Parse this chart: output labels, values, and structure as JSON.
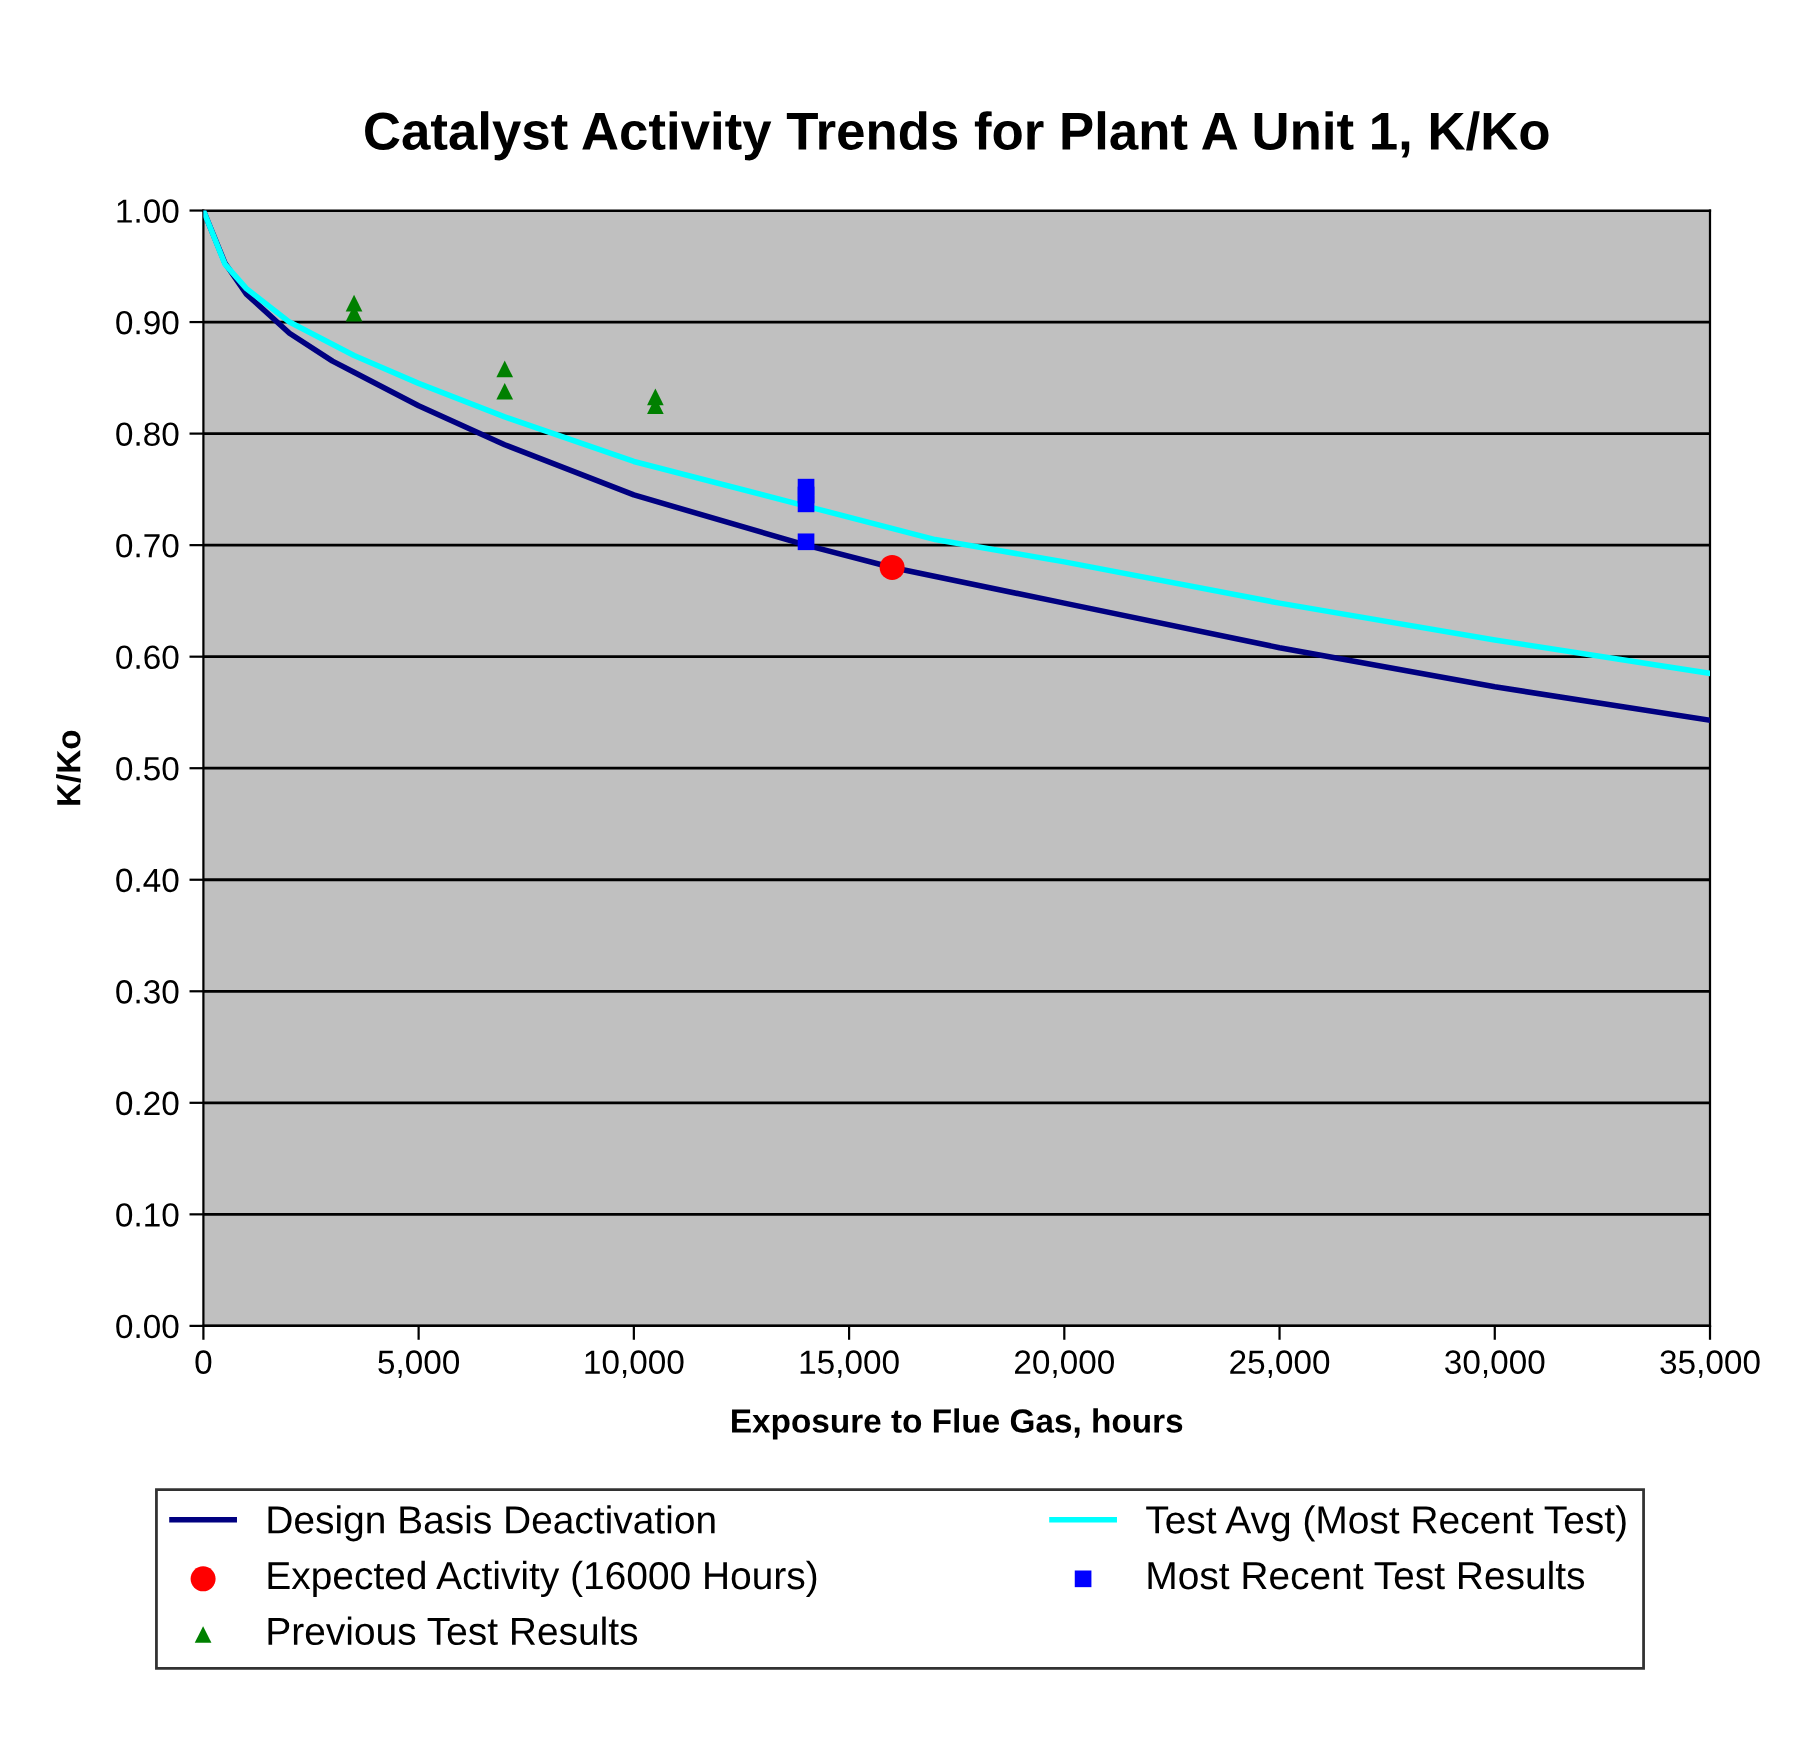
{
  "chart_data": {
    "type": "line",
    "title": "Catalyst Activity Trends for Plant A Unit 1, K/Ko",
    "xlabel": "Exposure to Flue Gas, hours",
    "ylabel": "K/Ko",
    "xlim": [
      0,
      35000
    ],
    "xticks": [
      {
        "value": 0,
        "label": "0"
      },
      {
        "value": 5000,
        "label": "5,000"
      },
      {
        "value": 10000,
        "label": "10,000"
      },
      {
        "value": 15000,
        "label": "15,000"
      },
      {
        "value": 20000,
        "label": "20,000"
      },
      {
        "value": 25000,
        "label": "25,000"
      },
      {
        "value": 30000,
        "label": "30,000"
      },
      {
        "value": 35000,
        "label": "35,000"
      }
    ],
    "ylim": [
      0,
      1
    ],
    "yticks": [
      {
        "value": 0,
        "label": "0.00"
      },
      {
        "value": 0.1,
        "label": "0.10"
      },
      {
        "value": 0.2,
        "label": "0.20"
      },
      {
        "value": 0.3,
        "label": "0.30"
      },
      {
        "value": 0.4,
        "label": "0.40"
      },
      {
        "value": 0.5,
        "label": "0.50"
      },
      {
        "value": 0.6,
        "label": "0.60"
      },
      {
        "value": 0.7,
        "label": "0.70"
      },
      {
        "value": 0.8,
        "label": "0.80"
      },
      {
        "value": 0.9,
        "label": "0.90"
      },
      {
        "value": 1,
        "label": "1.00"
      }
    ],
    "grid": "y",
    "legend": "bottom",
    "series": [
      {
        "name": "Design Basis Deactivation",
        "color": "#000080",
        "marker": "none",
        "x": [
          0,
          500,
          1000,
          2000,
          3000,
          3500,
          5000,
          7000,
          10000,
          14000,
          16000,
          20000,
          25000,
          30000,
          35000
        ],
        "values": [
          1.0,
          0.953,
          0.925,
          0.89,
          0.865,
          0.855,
          0.825,
          0.79,
          0.745,
          0.7,
          0.68,
          0.648,
          0.608,
          0.573,
          0.543
        ]
      },
      {
        "name": "Test Avg (Most Recent Test)",
        "color": "#00ffff",
        "marker": "none",
        "x": [
          0,
          500,
          1000,
          2000,
          3500,
          5000,
          7000,
          10000,
          14000,
          17000,
          20000,
          25000,
          30000,
          35000
        ],
        "values": [
          1.0,
          0.952,
          0.93,
          0.9,
          0.87,
          0.845,
          0.815,
          0.775,
          0.735,
          0.705,
          0.685,
          0.648,
          0.615,
          0.585
        ]
      },
      {
        "name": "Expected Activity (16000 Hours)",
        "type": "scatter",
        "color": "#ff0000",
        "marker": "circle",
        "x": [
          16000
        ],
        "values": [
          0.68
        ]
      },
      {
        "name": "Most Recent Test Results",
        "type": "scatter",
        "color": "#0000ff",
        "marker": "square",
        "x": [
          14000,
          14000,
          14000,
          14000
        ],
        "values": [
          0.752,
          0.745,
          0.737,
          0.703
        ]
      },
      {
        "name": "Previous Test Results",
        "type": "scatter",
        "color": "#008000",
        "marker": "triangle",
        "x": [
          3500,
          3500,
          7000,
          7000,
          10500,
          10500
        ],
        "values": [
          0.917,
          0.908,
          0.858,
          0.838,
          0.833,
          0.825
        ]
      }
    ]
  }
}
